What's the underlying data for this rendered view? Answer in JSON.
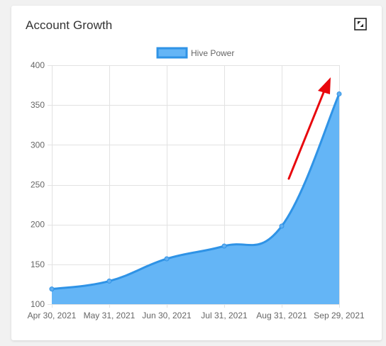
{
  "card": {
    "title": "Account Growth",
    "expand_icon": "expand-icon"
  },
  "colors": {
    "series_fill": "#64b5f6",
    "series_line": "#2f93e6",
    "point": "#62aef0",
    "grid": "#e2e2e2",
    "tick_text": "#666666",
    "arrow": "#e8070d"
  },
  "chart_data": {
    "type": "area",
    "x": [
      "Apr 30, 2021",
      "May 31, 2021",
      "Jun 30, 2021",
      "Jul 31, 2021",
      "Aug 31, 2021",
      "Sep 29, 2021"
    ],
    "series": [
      {
        "name": "Hive Power",
        "values": [
          119,
          129,
          157,
          173,
          198,
          364
        ]
      }
    ],
    "ylim": [
      100,
      400
    ],
    "yticks": [
      100,
      150,
      200,
      250,
      300,
      350,
      400
    ],
    "grid": true,
    "legend": "top-center",
    "title": "",
    "xlabel": "",
    "ylabel": "",
    "annotation": "red-arrow-pointing-up"
  }
}
